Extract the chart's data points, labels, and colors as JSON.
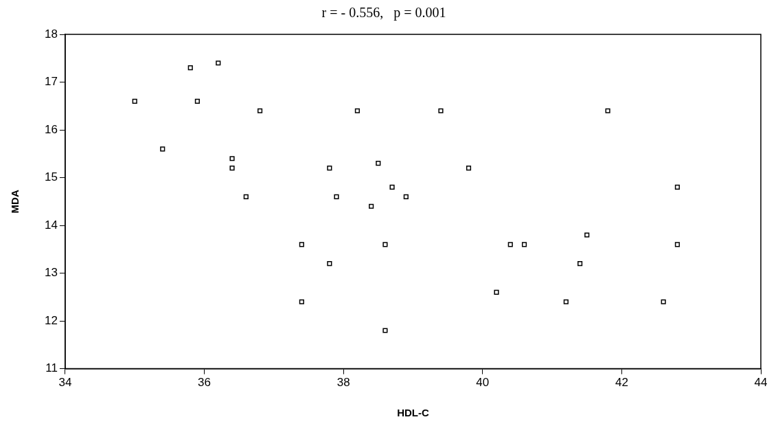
{
  "chart_data": {
    "type": "scatter",
    "title": "r = - 0.556,   p = 0.001",
    "xlabel": "HDL-C",
    "ylabel": "MDA",
    "xlim": [
      34,
      44
    ],
    "xticks": [
      34,
      36,
      38,
      40,
      42,
      44
    ],
    "ylim": [
      11,
      18
    ],
    "yticks": [
      11,
      12,
      13,
      14,
      15,
      16,
      17,
      18
    ],
    "grid": false,
    "legend": false,
    "marker": "square",
    "series": [
      {
        "color": "#000000",
        "x": [
          35.0,
          35.4,
          35.8,
          35.9,
          36.2,
          36.4,
          36.4,
          36.6,
          36.8,
          37.4,
          37.4,
          37.8,
          37.8,
          37.9,
          38.2,
          38.4,
          38.5,
          38.7,
          38.6,
          38.6,
          38.9,
          39.4,
          39.8,
          40.2,
          40.4,
          40.6,
          41.2,
          41.4,
          41.5,
          41.8,
          42.6,
          42.8,
          42.8
        ],
        "values": [
          16.6,
          15.6,
          17.3,
          16.6,
          17.4,
          15.4,
          15.2,
          14.6,
          16.4,
          13.6,
          12.4,
          15.2,
          13.2,
          14.6,
          16.4,
          14.4,
          15.3,
          14.8,
          13.6,
          11.8,
          14.6,
          16.4,
          15.2,
          12.6,
          13.6,
          13.6,
          12.4,
          13.2,
          13.8,
          16.4,
          12.4,
          14.8,
          13.6
        ]
      }
    ]
  }
}
